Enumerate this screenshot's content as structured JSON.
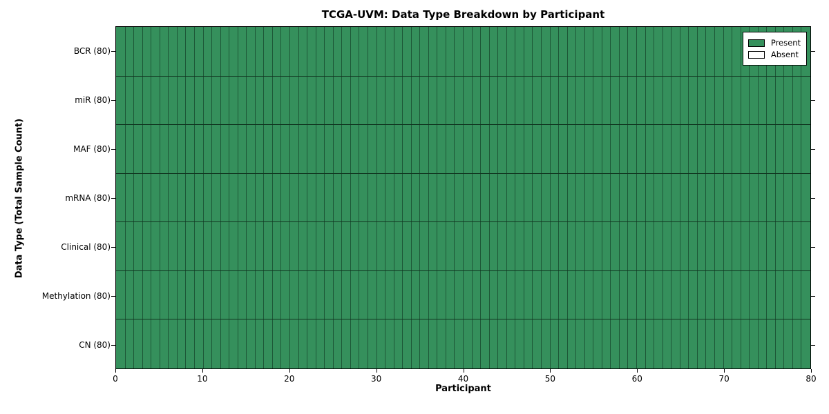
{
  "title": "TCGA-UVM: Data Type Breakdown by Participant",
  "chart_data": {
    "type": "heatmap",
    "title": "TCGA-UVM: Data Type Breakdown by Participant",
    "xlabel": "Participant",
    "ylabel": "Data Type (Total Sample Count)",
    "xlim": [
      0,
      80
    ],
    "x_ticks": [
      0,
      10,
      20,
      30,
      40,
      50,
      60,
      70,
      80
    ],
    "n_participants": 80,
    "grid": true,
    "legend_position": "upper right",
    "rows": [
      {
        "label": "BCR (80)",
        "data_type": "BCR",
        "total_sample_count": 80,
        "present_count": 80,
        "absent_count": 0
      },
      {
        "label": "miR (80)",
        "data_type": "miR",
        "total_sample_count": 80,
        "present_count": 80,
        "absent_count": 0
      },
      {
        "label": "MAF (80)",
        "data_type": "MAF",
        "total_sample_count": 80,
        "present_count": 80,
        "absent_count": 0
      },
      {
        "label": "mRNA (80)",
        "data_type": "mRNA",
        "total_sample_count": 80,
        "present_count": 80,
        "absent_count": 0
      },
      {
        "label": "Clinical (80)",
        "data_type": "Clinical",
        "total_sample_count": 80,
        "present_count": 80,
        "absent_count": 0
      },
      {
        "label": "Methylation (80)",
        "data_type": "Methylation",
        "total_sample_count": 80,
        "present_count": 80,
        "absent_count": 0
      },
      {
        "label": "CN (80)",
        "data_type": "CN",
        "total_sample_count": 80,
        "present_count": 80,
        "absent_count": 0
      }
    ],
    "legend": [
      {
        "label": "Present",
        "color": "#35905C"
      },
      {
        "label": "Absent",
        "color": "#FFFFFF"
      }
    ],
    "colors": {
      "present": "#35905C",
      "absent": "#FFFFFF",
      "cell_edge": "#1D5737",
      "row_separator": "#10341F",
      "axis": "#000000"
    }
  }
}
